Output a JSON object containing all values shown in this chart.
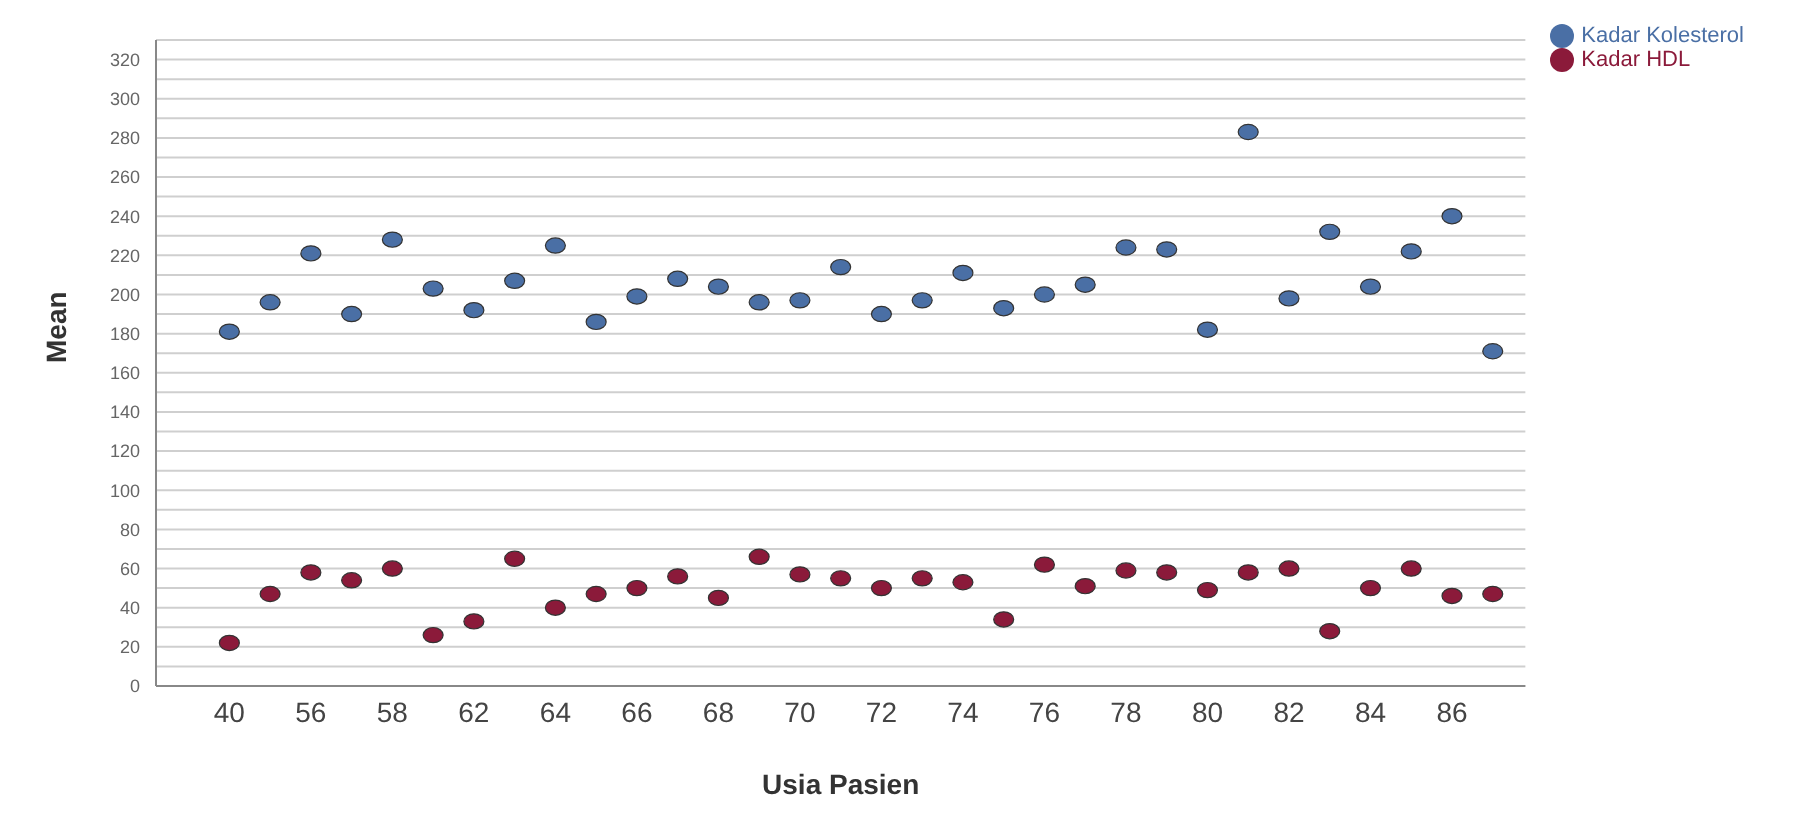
{
  "chart_data": {
    "type": "scatter",
    "xlabel": "Usia Pasien",
    "ylabel": "Mean",
    "categories": [
      "40",
      null,
      "56",
      null,
      "58",
      null,
      "62",
      null,
      "64",
      null,
      "66",
      null,
      "68",
      null,
      "70",
      null,
      "72",
      null,
      "74",
      null,
      "76",
      null,
      "78",
      null,
      "80",
      null,
      "82",
      null,
      "84",
      null,
      "86",
      null
    ],
    "series": [
      {
        "name": "Kadar Kolesterol",
        "color": "#4a6fa5",
        "values": [
          181,
          196,
          221,
          190,
          228,
          203,
          192,
          207,
          225,
          186,
          199,
          208,
          204,
          196,
          197,
          214,
          190,
          197,
          211,
          193,
          200,
          205,
          224,
          223,
          182,
          283,
          198,
          232,
          204,
          222,
          240,
          171
        ]
      },
      {
        "name": "Kadar HDL",
        "color": "#8b1a3a",
        "values": [
          22,
          47,
          58,
          54,
          60,
          26,
          33,
          65,
          40,
          47,
          50,
          56,
          45,
          66,
          57,
          55,
          50,
          55,
          53,
          34,
          62,
          51,
          59,
          58,
          49,
          58,
          60,
          28,
          50,
          60,
          46,
          47
        ]
      }
    ],
    "ylim": [
      0,
      330
    ],
    "yticks": [
      0,
      {
        "value": 10,
        "label": null
      },
      20,
      {
        "value": 30,
        "label": null
      },
      40,
      {
        "value": 50,
        "label": null
      },
      60,
      {
        "value": 70,
        "label": null
      },
      80,
      {
        "value": 90,
        "label": null
      },
      100,
      {
        "value": 110,
        "label": null
      },
      120,
      {
        "value": 130,
        "label": null
      },
      140,
      {
        "value": 150,
        "label": null
      },
      160,
      {
        "value": 170,
        "label": null
      },
      180,
      {
        "value": 190,
        "label": null
      },
      200,
      {
        "value": 210,
        "label": null
      },
      220,
      {
        "value": 230,
        "label": null
      },
      240,
      {
        "value": 250,
        "label": null
      },
      260,
      {
        "value": 270,
        "label": null
      },
      280,
      {
        "value": 290,
        "label": null
      },
      300,
      {
        "value": 310,
        "label": null
      },
      320
    ],
    "grid": "y",
    "legend": "top right",
    "marker": "circle"
  }
}
